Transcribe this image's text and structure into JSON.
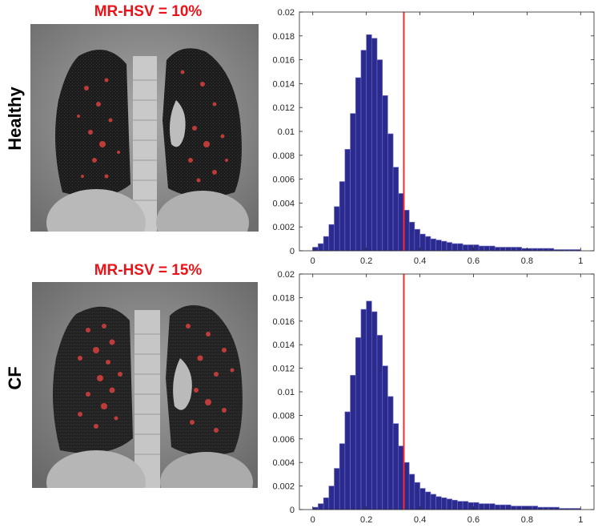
{
  "rows": [
    {
      "label": "Healthy",
      "title": "MR-HSV = 10%"
    },
    {
      "label": "CF",
      "title": "MR-HSV = 15%"
    }
  ],
  "colors": {
    "title_red": "#e8141a",
    "bar_fill": "#2b2b8f",
    "bar_edge": "#6f6fc4",
    "threshold_line": "#ff2a2a",
    "overlay_red": "#d9413f"
  },
  "chart_data": [
    {
      "type": "bar",
      "title": "",
      "xlabel": "",
      "ylabel": "",
      "xlim": [
        -0.05,
        1.05
      ],
      "ylim": [
        0,
        0.02
      ],
      "xticks": [
        0,
        0.2,
        0.4,
        0.6,
        0.8,
        1
      ],
      "xtick_labels": [
        "0",
        "0.2",
        "0.4",
        "0.6",
        "0.8",
        "1"
      ],
      "yticks": [
        0,
        0.002,
        0.004,
        0.006,
        0.008,
        0.01,
        0.012,
        0.014,
        0.016,
        0.018,
        0.02
      ],
      "ytick_labels": [
        "0",
        "0.002",
        "0.004",
        "0.006",
        "0.008",
        "0.01",
        "0.012",
        "0.014",
        "0.016",
        "0.018",
        "0.02"
      ],
      "threshold": 0.34,
      "x": [
        0.01,
        0.03,
        0.05,
        0.07,
        0.09,
        0.11,
        0.13,
        0.15,
        0.17,
        0.19,
        0.21,
        0.23,
        0.25,
        0.27,
        0.29,
        0.31,
        0.33,
        0.35,
        0.37,
        0.39,
        0.41,
        0.43,
        0.45,
        0.47,
        0.49,
        0.51,
        0.53,
        0.55,
        0.57,
        0.59,
        0.61,
        0.63,
        0.65,
        0.67,
        0.69,
        0.71,
        0.73,
        0.75,
        0.77,
        0.79,
        0.81,
        0.83,
        0.85,
        0.87,
        0.89,
        0.91,
        0.93,
        0.95,
        0.97,
        0.99
      ],
      "values": [
        0.0003,
        0.0006,
        0.0012,
        0.0022,
        0.0037,
        0.0058,
        0.0085,
        0.0115,
        0.0145,
        0.0168,
        0.0181,
        0.0178,
        0.016,
        0.013,
        0.0098,
        0.007,
        0.0048,
        0.0034,
        0.0024,
        0.0018,
        0.0014,
        0.0012,
        0.001,
        0.0009,
        0.0008,
        0.0007,
        0.0006,
        0.0006,
        0.0005,
        0.0005,
        0.0005,
        0.0004,
        0.0004,
        0.0004,
        0.0003,
        0.0003,
        0.0003,
        0.0003,
        0.0003,
        0.0002,
        0.0002,
        0.0002,
        0.0002,
        0.0002,
        0.0002,
        0.0001,
        0.0001,
        0.0001,
        0.0001,
        0.0001
      ]
    },
    {
      "type": "bar",
      "title": "",
      "xlabel": "",
      "ylabel": "",
      "xlim": [
        -0.05,
        1.05
      ],
      "ylim": [
        0,
        0.02
      ],
      "xticks": [
        0,
        0.2,
        0.4,
        0.6,
        0.8,
        1
      ],
      "xtick_labels": [
        "0",
        "0.2",
        "0.4",
        "0.6",
        "0.8",
        "1"
      ],
      "yticks": [
        0,
        0.002,
        0.004,
        0.006,
        0.008,
        0.01,
        0.012,
        0.014,
        0.016,
        0.018,
        0.02
      ],
      "ytick_labels": [
        "0",
        "0.002",
        "0.004",
        "0.006",
        "0.008",
        "0.01",
        "0.012",
        "0.014",
        "0.016",
        "0.018",
        "0.02"
      ],
      "threshold": 0.34,
      "x": [
        0.01,
        0.03,
        0.05,
        0.07,
        0.09,
        0.11,
        0.13,
        0.15,
        0.17,
        0.19,
        0.21,
        0.23,
        0.25,
        0.27,
        0.29,
        0.31,
        0.33,
        0.35,
        0.37,
        0.39,
        0.41,
        0.43,
        0.45,
        0.47,
        0.49,
        0.51,
        0.53,
        0.55,
        0.57,
        0.59,
        0.61,
        0.63,
        0.65,
        0.67,
        0.69,
        0.71,
        0.73,
        0.75,
        0.77,
        0.79,
        0.81,
        0.83,
        0.85,
        0.87,
        0.89,
        0.91,
        0.93,
        0.95,
        0.97,
        0.99
      ],
      "values": [
        0.0002,
        0.0005,
        0.001,
        0.002,
        0.0035,
        0.0056,
        0.0083,
        0.0114,
        0.0146,
        0.017,
        0.0177,
        0.0168,
        0.0148,
        0.0122,
        0.0096,
        0.0073,
        0.0054,
        0.004,
        0.003,
        0.0023,
        0.0018,
        0.0015,
        0.0013,
        0.0011,
        0.001,
        0.0009,
        0.0008,
        0.0007,
        0.0007,
        0.0006,
        0.0006,
        0.0005,
        0.0005,
        0.0005,
        0.0004,
        0.0004,
        0.0004,
        0.0003,
        0.0003,
        0.0003,
        0.0003,
        0.0003,
        0.0002,
        0.0002,
        0.0002,
        0.0002,
        0.0001,
        0.0001,
        0.0001,
        0.0001
      ]
    }
  ]
}
